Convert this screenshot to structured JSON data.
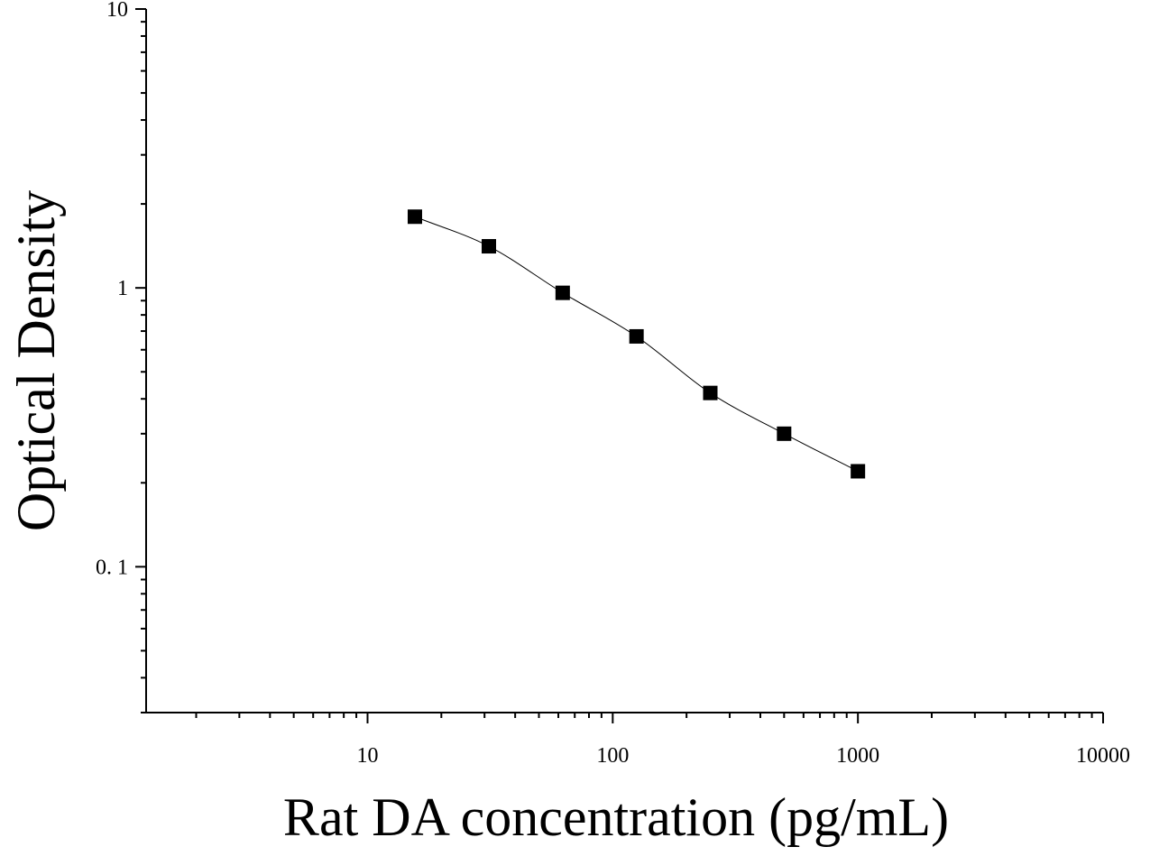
{
  "chart_data": {
    "type": "scatter",
    "xlabel": "Rat DA concentration (pg/mL)",
    "ylabel": "Optical Density",
    "xscale": "log",
    "yscale": "log",
    "xlim": [
      1.25,
      10000
    ],
    "ylim": [
      0.03,
      10
    ],
    "x_tick_labels": [
      "10",
      "100",
      "1000",
      "10000"
    ],
    "y_tick_labels": [
      "0. 1",
      "1",
      "10"
    ],
    "grid": false,
    "legend": "none",
    "marker": "square",
    "series": [
      {
        "x": [
          15.6,
          31.25,
          62.5,
          125,
          250,
          500,
          1000
        ],
        "y": [
          1.8,
          1.41,
          0.96,
          0.67,
          0.42,
          0.3,
          0.22
        ],
        "fit_curve": true
      }
    ],
    "colors": {
      "marker": "#000000",
      "axis": "#000000",
      "curve": "#000000"
    }
  }
}
